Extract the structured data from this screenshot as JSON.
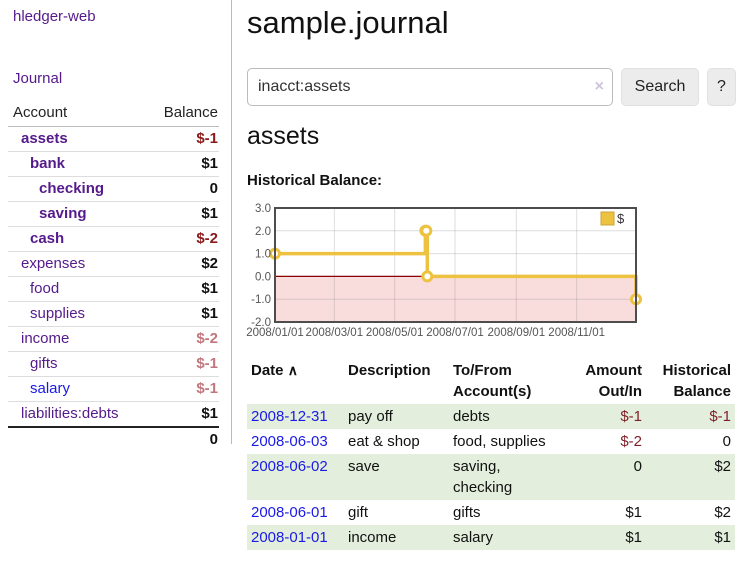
{
  "sidebar": {
    "brand": "hledger-web",
    "nav": {
      "journal": "Journal"
    },
    "accounts_table": {
      "col_account": "Account",
      "col_balance": "Balance",
      "rows": [
        {
          "name": "assets",
          "depth": 0,
          "in_query": true,
          "balance": "$-1",
          "balance_style": "neg-strong",
          "link_color": "visited"
        },
        {
          "name": "bank",
          "depth": 1,
          "in_query": true,
          "balance": "$1",
          "balance_style": "",
          "link_color": "visited"
        },
        {
          "name": "checking",
          "depth": 2,
          "in_query": true,
          "balance": "0",
          "balance_style": "",
          "link_color": "visited"
        },
        {
          "name": "saving",
          "depth": 2,
          "in_query": true,
          "balance": "$1",
          "balance_style": "",
          "link_color": "visited"
        },
        {
          "name": "cash",
          "depth": 1,
          "in_query": true,
          "balance": "$-2",
          "balance_style": "neg-strong",
          "link_color": "visited"
        },
        {
          "name": "expenses",
          "depth": 0,
          "in_query": false,
          "balance": "$2",
          "balance_style": "",
          "link_color": "visited"
        },
        {
          "name": "food",
          "depth": 1,
          "in_query": false,
          "balance": "$1",
          "balance_style": "",
          "link_color": "visited"
        },
        {
          "name": "supplies",
          "depth": 1,
          "in_query": false,
          "balance": "$1",
          "balance_style": "",
          "link_color": "visited"
        },
        {
          "name": "income",
          "depth": 0,
          "in_query": false,
          "balance": "$-2",
          "balance_style": "neg-muted",
          "link_color": "visited"
        },
        {
          "name": "gifts",
          "depth": 1,
          "in_query": false,
          "balance": "$-1",
          "balance_style": "neg-muted",
          "link_color": "visited"
        },
        {
          "name": "salary",
          "depth": 1,
          "in_query": false,
          "balance": "$-1",
          "balance_style": "neg-muted",
          "link_color": "unvisited"
        },
        {
          "name": "liabilities:debts",
          "depth": 0,
          "in_query": false,
          "balance": "$1",
          "balance_style": "",
          "link_color": "visited"
        }
      ],
      "total": "0"
    }
  },
  "main": {
    "title": "sample.journal",
    "search": {
      "value": "inacct:assets",
      "clear_icon": "×",
      "search_button": "Search",
      "help_button": "?"
    },
    "account_heading": "assets",
    "chart_label": "Historical Balance:",
    "register": {
      "headers": [
        "Date",
        "Description",
        "To/From Account(s)",
        "Amount Out/In",
        "Historical Balance"
      ],
      "sort_icon": "∧",
      "rows": [
        {
          "date": "2008-12-31",
          "description": "pay off",
          "accounts": "debts",
          "amount": "$-1",
          "amount_negative": true,
          "balance": "$-1",
          "balance_negative": true
        },
        {
          "date": "2008-06-03",
          "description": "eat & shop",
          "accounts": "food, supplies",
          "amount": "$-2",
          "amount_negative": true,
          "balance": "0",
          "balance_negative": false
        },
        {
          "date": "2008-06-02",
          "description": "save",
          "accounts": "saving,\nchecking",
          "amount": "0",
          "amount_negative": false,
          "balance": "$2",
          "balance_negative": false
        },
        {
          "date": "2008-06-01",
          "description": "gift",
          "accounts": "gifts",
          "amount": "$1",
          "amount_negative": false,
          "balance": "$2",
          "balance_negative": false
        },
        {
          "date": "2008-01-01",
          "description": "income",
          "accounts": "salary",
          "amount": "$1",
          "amount_negative": false,
          "balance": "$1",
          "balance_negative": false
        }
      ]
    }
  },
  "chart_data": {
    "type": "line",
    "step": true,
    "title": "Historical Balance:",
    "legend": {
      "label": "$",
      "position": "top-right"
    },
    "series": [
      {
        "name": "$",
        "color": "#edc240",
        "points": [
          [
            "2008-01-01",
            1
          ],
          [
            "2008-06-01",
            2
          ],
          [
            "2008-06-02",
            2
          ],
          [
            "2008-06-03",
            0
          ],
          [
            "2008-12-31",
            -1
          ]
        ]
      }
    ],
    "x_ticks": [
      "2008/01/01",
      "2008/03/01",
      "2008/05/01",
      "2008/07/01",
      "2008/09/01",
      "2008/11/01"
    ],
    "y_ticks": [
      3.0,
      2.0,
      1.0,
      0.0,
      -1.0,
      -2.0
    ],
    "ylim": [
      -2,
      3
    ],
    "x_range": [
      "2008-01-01",
      "2008-12-31"
    ],
    "grid": true,
    "colors": {
      "negative_region": "#f9dddd",
      "zero_line": "#8b0000",
      "border": "#4d4d4d",
      "tick_label": "#555555",
      "gridline": "rgba(125,125,125,0.25)"
    }
  },
  "colors": {
    "link_visited": "#551a8b",
    "link_unvisited": "#1a1ae6",
    "negative_strong": "#8b1a1a",
    "negative_muted": "#c2777d",
    "negative_table": "#7f1f28",
    "row_green": "#e3efdc",
    "series_yellow": "#edc240"
  }
}
